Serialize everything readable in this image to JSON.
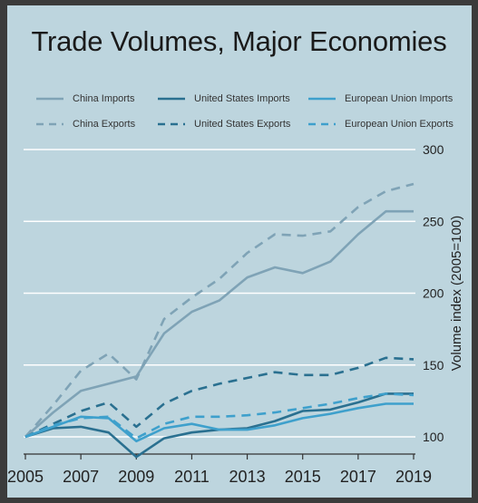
{
  "chart_data": {
    "type": "line",
    "title": "Trade Volumes, Major Economies",
    "ylabel": "Volume index (2005=100)",
    "xlabel": "",
    "x": [
      2005,
      2006,
      2007,
      2008,
      2009,
      2010,
      2011,
      2012,
      2013,
      2014,
      2015,
      2016,
      2017,
      2018,
      2019
    ],
    "xticks": [
      "2005",
      "2007",
      "2009",
      "2011",
      "2013",
      "2015",
      "2017",
      "2019"
    ],
    "yticks": [
      "100",
      "150",
      "200",
      "250",
      "300"
    ],
    "ylim": [
      90,
      300
    ],
    "grid": true,
    "legend_position": "top",
    "series": [
      {
        "name": "China Imports",
        "color": "#7fa3b6",
        "dash": "solid",
        "values": [
          100,
          117,
          132,
          137,
          142,
          172,
          187,
          195,
          211,
          218,
          214,
          222,
          241,
          257,
          257
        ]
      },
      {
        "name": "China Exports",
        "color": "#7fa3b6",
        "dash": "dashed",
        "values": [
          100,
          122,
          146,
          158,
          140,
          182,
          197,
          210,
          228,
          241,
          240,
          243,
          260,
          271,
          276
        ]
      },
      {
        "name": "United States Imports",
        "color": "#2a7090",
        "dash": "solid",
        "values": [
          100,
          106,
          107,
          103,
          86,
          99,
          103,
          105,
          106,
          111,
          118,
          119,
          124,
          130,
          130
        ]
      },
      {
        "name": "United States Exports",
        "color": "#2a7090",
        "dash": "dashed",
        "values": [
          100,
          109,
          118,
          124,
          107,
          123,
          132,
          137,
          141,
          145,
          143,
          143,
          148,
          155,
          154
        ]
      },
      {
        "name": "European Union Imports",
        "color": "#3ea0cc",
        "dash": "solid",
        "values": [
          100,
          107,
          114,
          113,
          97,
          106,
          109,
          105,
          105,
          108,
          113,
          116,
          120,
          123,
          123
        ]
      },
      {
        "name": "European Union Exports",
        "color": "#3ea0cc",
        "dash": "dashed",
        "values": [
          100,
          108,
          113,
          114,
          99,
          109,
          114,
          114,
          115,
          117,
          120,
          123,
          127,
          130,
          129
        ]
      }
    ]
  }
}
